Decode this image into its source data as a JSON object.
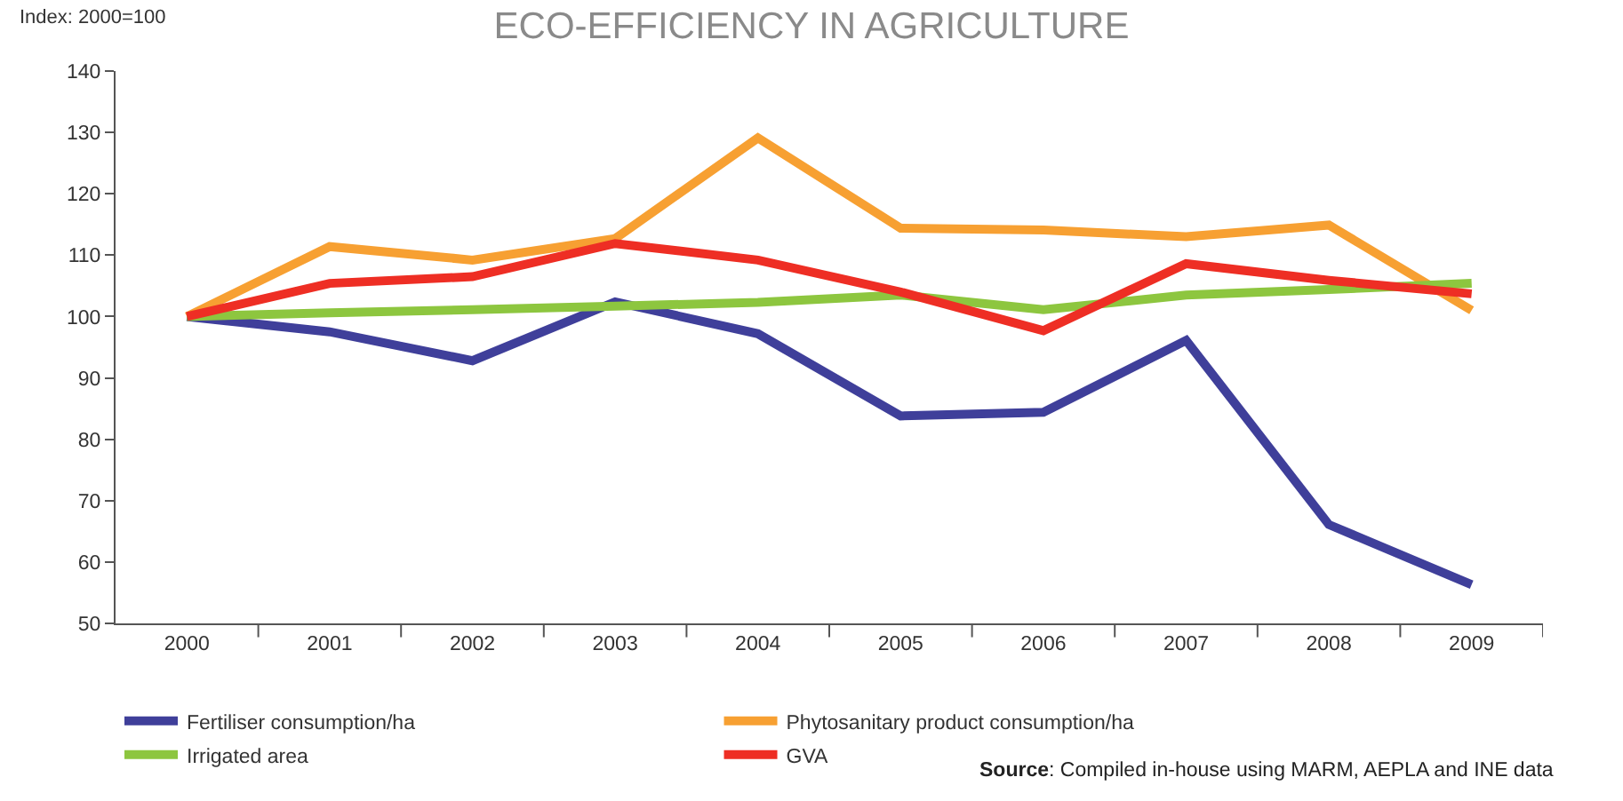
{
  "chart_data": {
    "type": "line",
    "title": "ECO-EFFICIENCY IN AGRICULTURE",
    "ylabel": "Index: 2000=100",
    "categories": [
      "2000",
      "2001",
      "2002",
      "2003",
      "2004",
      "2005",
      "2006",
      "2007",
      "2008",
      "2009"
    ],
    "series": [
      {
        "name": "Fertiliser consumption/ha",
        "color": "#3f3f9a",
        "values": [
          100,
          97.5,
          92.8,
          102.4,
          97.2,
          83.8,
          84.4,
          96.1,
          66.1,
          56.3
        ]
      },
      {
        "name": "Phytosanitary product consumption/ha",
        "color": "#f7a032",
        "values": [
          100,
          111.4,
          109.2,
          112.7,
          129.1,
          114.4,
          114.1,
          113,
          114.9,
          101
        ]
      },
      {
        "name": "Irrigated area",
        "color": "#8dc63f",
        "values": [
          100,
          100.6,
          101.1,
          101.7,
          102.3,
          103.5,
          101.1,
          103.5,
          104.4,
          105.4
        ]
      },
      {
        "name": "GVA",
        "color": "#ee2e24",
        "values": [
          100,
          105.4,
          106.5,
          111.9,
          109.2,
          104,
          97.7,
          108.6,
          105.9,
          103.7
        ]
      }
    ],
    "ylim": [
      50,
      140
    ],
    "yticks": [
      50,
      60,
      70,
      80,
      90,
      100,
      110,
      120,
      130,
      140
    ],
    "grid": false,
    "legend": "bottom left",
    "marker": "none",
    "line_style": "solid",
    "annotations": [
      "Source: Compiled in-house using MARM, AEPLA and INE data"
    ]
  }
}
